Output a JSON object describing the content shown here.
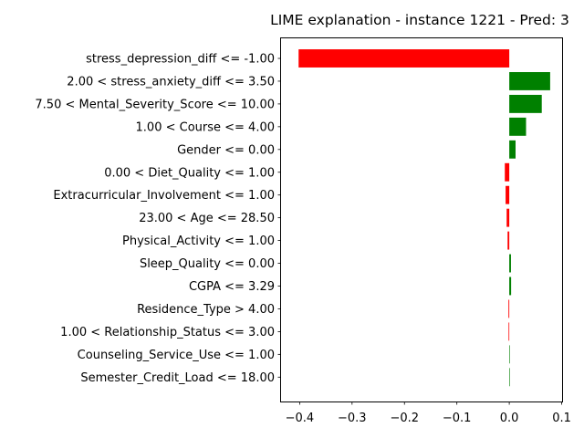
{
  "chart_data": {
    "type": "bar",
    "orientation": "horizontal",
    "title": "LIME explanation - instance 1221 - Pred: 3",
    "xlabel": "",
    "ylabel": "",
    "xlim": [
      -0.4355,
      0.1008
    ],
    "x_ticks": [
      -0.4,
      -0.3,
      -0.2,
      -0.1,
      0.0,
      0.1
    ],
    "x_tick_labels": [
      "−0.4",
      "−0.3",
      "−0.2",
      "−0.1",
      "0.0",
      "0.1"
    ],
    "grid": false,
    "legend": "none",
    "positive_color": "#008000",
    "negative_color": "#ff0000",
    "categories": [
      "stress_depression_diff <= -1.00",
      "2.00 < stress_anxiety_diff <= 3.50",
      "7.50 < Mental_Severity_Score <= 10.00",
      "1.00 < Course <= 4.00",
      "Gender <= 0.00",
      "0.00 < Diet_Quality <= 1.00",
      "Extracurricular_Involvement <= 1.00",
      "23.00 < Age <= 28.50",
      "Physical_Activity <= 1.00",
      "Sleep_Quality <= 0.00",
      "CGPA <= 3.29",
      "Residence_Type > 4.00",
      "1.00 < Relationship_Status <= 3.00",
      "Counseling_Service_Use <= 1.00",
      "Semester_Credit_Load <= 18.00"
    ],
    "values": [
      -0.402,
      0.078,
      0.062,
      0.032,
      0.012,
      -0.0085,
      -0.007,
      -0.005,
      -0.0032,
      0.0032,
      0.0035,
      -0.0015,
      -0.0013,
      0.0008,
      0.0006
    ]
  }
}
